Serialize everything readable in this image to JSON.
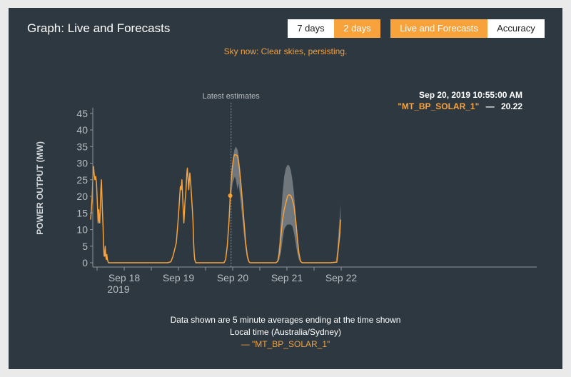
{
  "header": {
    "title": "Graph: Live and Forecasts",
    "range_buttons": [
      "7 days",
      "2 days"
    ],
    "view_buttons": [
      "Live and Forecasts",
      "Accuracy"
    ]
  },
  "sky_now": "Sky now: Clear skies, persisting.",
  "tooltip": {
    "datetime": "Sep 20, 2019 10:55:00 AM",
    "series_label": "\"MT_BP_SOLAR_1\"",
    "separator": "—",
    "value": "20.22"
  },
  "latest_label": "Latest estimates",
  "footer": {
    "line1": "Data shown are 5 minute averages ending at the time shown",
    "line2": "Local time (Australia/Sydney)",
    "legend": "— \"MT_BP_SOLAR_1\""
  },
  "colors": {
    "background": "#2e3840",
    "accent": "#f7a23b",
    "band": "#7b8288",
    "axis_text": "#b8bec3"
  },
  "chart_data": {
    "type": "line",
    "title": "",
    "xlabel": "",
    "ylabel": "POWER OUTPUT (MW)",
    "ylim": [
      0,
      45
    ],
    "yticks": [
      0,
      5,
      10,
      15,
      20,
      25,
      30,
      35,
      40,
      45
    ],
    "xticks": [
      {
        "x": 18.0,
        "label": "Sep 18",
        "sub": "2019"
      },
      {
        "x": 19.0,
        "label": "Sep 19"
      },
      {
        "x": 20.0,
        "label": "Sep 20"
      },
      {
        "x": 21.0,
        "label": "Sep 21"
      },
      {
        "x": 22.0,
        "label": "Sep 22"
      }
    ],
    "latest_x": 20.47,
    "latest_point": [
      20.455,
      20.22
    ],
    "series": [
      {
        "name": "MT_BP_SOLAR_1",
        "kind": "actual",
        "points": [
          [
            17.88,
            13
          ],
          [
            17.895,
            16
          ],
          [
            17.91,
            20
          ],
          [
            17.925,
            27
          ],
          [
            17.935,
            29
          ],
          [
            17.945,
            27
          ],
          [
            17.96,
            25
          ],
          [
            17.975,
            26
          ],
          [
            17.99,
            24
          ],
          [
            18.0,
            20
          ],
          [
            18.01,
            16
          ],
          [
            18.02,
            12
          ],
          [
            18.03,
            16
          ],
          [
            18.04,
            13
          ],
          [
            18.05,
            12
          ],
          [
            18.06,
            17
          ],
          [
            18.07,
            22
          ],
          [
            18.08,
            25
          ],
          [
            18.09,
            20
          ],
          [
            18.1,
            15
          ],
          [
            18.11,
            11
          ],
          [
            18.12,
            5
          ],
          [
            18.13,
            2
          ],
          [
            18.14,
            2
          ],
          [
            18.15,
            5
          ],
          [
            18.16,
            2
          ],
          [
            18.17,
            1
          ],
          [
            18.18,
            2.5
          ],
          [
            18.19,
            1
          ],
          [
            18.21,
            0
          ],
          [
            18.4,
            0
          ],
          [
            18.6,
            0
          ],
          [
            18.8,
            0
          ],
          [
            19.0,
            0
          ],
          [
            19.2,
            0
          ],
          [
            19.3,
            0
          ],
          [
            19.36,
            0.3
          ],
          [
            19.4,
            2
          ],
          [
            19.43,
            4
          ],
          [
            19.46,
            6
          ],
          [
            19.48,
            10
          ],
          [
            19.5,
            14
          ],
          [
            19.52,
            19
          ],
          [
            19.535,
            23
          ],
          [
            19.55,
            22
          ],
          [
            19.565,
            25
          ],
          [
            19.575,
            21
          ],
          [
            19.585,
            17
          ],
          [
            19.6,
            12
          ],
          [
            19.62,
            18
          ],
          [
            19.64,
            22
          ],
          [
            19.655,
            27
          ],
          [
            19.665,
            28.5
          ],
          [
            19.675,
            26
          ],
          [
            19.69,
            22
          ],
          [
            19.7,
            25
          ],
          [
            19.71,
            27
          ],
          [
            19.72,
            25
          ],
          [
            19.73,
            23
          ],
          [
            19.745,
            19
          ],
          [
            19.76,
            15
          ],
          [
            19.77,
            12
          ],
          [
            19.78,
            6
          ],
          [
            19.79,
            3
          ],
          [
            19.8,
            1
          ],
          [
            19.82,
            0
          ],
          [
            20.0,
            0
          ],
          [
            20.2,
            0
          ],
          [
            20.34,
            0
          ],
          [
            20.37,
            1
          ],
          [
            20.4,
            5
          ],
          [
            20.43,
            12
          ],
          [
            20.455,
            20.22
          ]
        ]
      },
      {
        "name": "forecast",
        "kind": "forecast",
        "points": [
          [
            20.455,
            20.22
          ],
          [
            20.47,
            24
          ],
          [
            20.49,
            28
          ],
          [
            20.51,
            31
          ],
          [
            20.53,
            32.5
          ],
          [
            20.56,
            32.5
          ],
          [
            20.59,
            32.2
          ],
          [
            20.62,
            29
          ],
          [
            20.65,
            24
          ],
          [
            20.68,
            18
          ],
          [
            20.71,
            12
          ],
          [
            20.74,
            6
          ],
          [
            20.77,
            2
          ],
          [
            20.8,
            0.3
          ],
          [
            20.82,
            0
          ],
          [
            21.0,
            0
          ],
          [
            21.2,
            0
          ],
          [
            21.3,
            0
          ],
          [
            21.33,
            0.5
          ],
          [
            21.36,
            3
          ],
          [
            21.39,
            8
          ],
          [
            21.42,
            13
          ],
          [
            21.45,
            16
          ],
          [
            21.48,
            18
          ],
          [
            21.51,
            20
          ],
          [
            21.54,
            20.5
          ],
          [
            21.57,
            20.3
          ],
          [
            21.6,
            19
          ],
          [
            21.63,
            17
          ],
          [
            21.66,
            13
          ],
          [
            21.69,
            8
          ],
          [
            21.72,
            3
          ],
          [
            21.75,
            0.5
          ],
          [
            21.78,
            0
          ],
          [
            22.0,
            0
          ],
          [
            22.3,
            0
          ],
          [
            22.42,
            0.2
          ],
          [
            22.44,
            3
          ],
          [
            22.47,
            8
          ],
          [
            22.49,
            13
          ]
        ]
      }
    ],
    "forecast_band": [
      {
        "upper": [
          [
            20.44,
            16
          ],
          [
            20.47,
            24
          ],
          [
            20.5,
            31
          ],
          [
            20.53,
            34
          ],
          [
            20.56,
            35
          ],
          [
            20.59,
            34
          ],
          [
            20.62,
            31
          ],
          [
            20.65,
            26
          ],
          [
            20.68,
            20
          ],
          [
            20.71,
            13
          ],
          [
            20.74,
            7
          ],
          [
            20.77,
            3
          ],
          [
            20.8,
            0.5
          ]
        ],
        "lower": [
          [
            20.44,
            14
          ],
          [
            20.47,
            20
          ],
          [
            20.5,
            24
          ],
          [
            20.52,
            25
          ],
          [
            20.54,
            26
          ],
          [
            20.56,
            25
          ],
          [
            20.59,
            22
          ],
          [
            20.61,
            24
          ],
          [
            20.63,
            21
          ],
          [
            20.65,
            18
          ],
          [
            20.68,
            13
          ],
          [
            20.71,
            8
          ],
          [
            20.74,
            4
          ],
          [
            20.77,
            1
          ],
          [
            20.8,
            0
          ]
        ]
      },
      {
        "upper": [
          [
            21.33,
            1
          ],
          [
            21.36,
            6
          ],
          [
            21.39,
            14
          ],
          [
            21.42,
            21
          ],
          [
            21.45,
            26
          ],
          [
            21.48,
            28.5
          ],
          [
            21.51,
            29.5
          ],
          [
            21.54,
            29.3
          ],
          [
            21.57,
            28
          ],
          [
            21.6,
            25
          ],
          [
            21.63,
            21
          ],
          [
            21.66,
            15
          ],
          [
            21.69,
            9
          ],
          [
            21.72,
            4
          ],
          [
            21.75,
            1
          ]
        ],
        "lower": [
          [
            21.33,
            0
          ],
          [
            21.36,
            1
          ],
          [
            21.39,
            3
          ],
          [
            21.42,
            7
          ],
          [
            21.45,
            10
          ],
          [
            21.48,
            11
          ],
          [
            21.51,
            11.5
          ],
          [
            21.54,
            11.5
          ],
          [
            21.57,
            11.5
          ],
          [
            21.6,
            11
          ],
          [
            21.63,
            9
          ],
          [
            21.66,
            6
          ],
          [
            21.69,
            3
          ],
          [
            21.72,
            1
          ],
          [
            21.75,
            0
          ]
        ]
      },
      {
        "upper": [
          [
            22.4,
            0
          ],
          [
            22.43,
            4
          ],
          [
            22.46,
            11
          ],
          [
            22.49,
            17.5
          ]
        ],
        "lower": [
          [
            22.4,
            0
          ],
          [
            22.43,
            2
          ],
          [
            22.46,
            5
          ],
          [
            22.49,
            9
          ]
        ]
      }
    ]
  }
}
